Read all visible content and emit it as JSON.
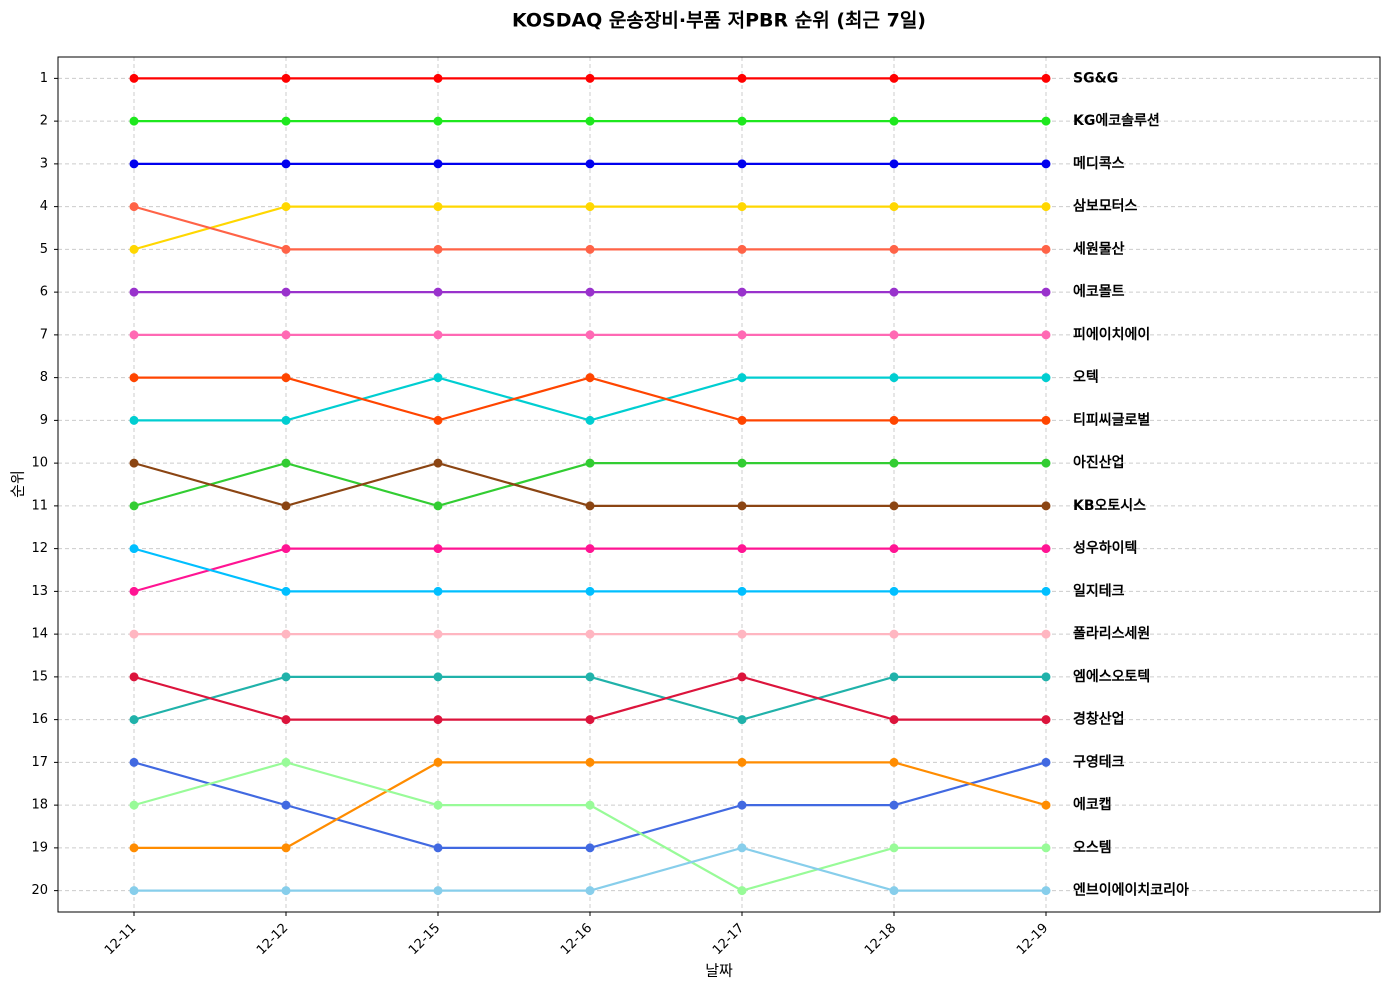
{
  "chart_data": {
    "type": "line",
    "title": "KOSDAQ 운송장비·부품 저PBR 순위 (최근 7일)",
    "x_label": "날짜",
    "y_label": "순위",
    "categories": [
      "12-11",
      "12-12",
      "12-15",
      "12-16",
      "12-17",
      "12-18",
      "12-19"
    ],
    "ylim": [
      20.5,
      0.5
    ],
    "inverted_y": true,
    "yticks": [
      1,
      2,
      3,
      4,
      5,
      6,
      7,
      8,
      9,
      10,
      11,
      12,
      13,
      14,
      15,
      16,
      17,
      18,
      19,
      20
    ],
    "grid": true,
    "series": [
      {
        "name": "SG&G",
        "color": "#ff0000",
        "values": [
          1,
          1,
          1,
          1,
          1,
          1,
          1
        ]
      },
      {
        "name": "KG에코솔루션",
        "color": "#1ee81e",
        "values": [
          2,
          2,
          2,
          2,
          2,
          2,
          2
        ]
      },
      {
        "name": "메디콕스",
        "color": "#0000ee",
        "values": [
          3,
          3,
          3,
          3,
          3,
          3,
          3
        ]
      },
      {
        "name": "삼보모터스",
        "color": "#ffd700",
        "values": [
          5,
          4,
          4,
          4,
          4,
          4,
          4
        ]
      },
      {
        "name": "세원물산",
        "color": "#ff6347",
        "values": [
          4,
          5,
          5,
          5,
          5,
          5,
          5
        ]
      },
      {
        "name": "에코몰트",
        "color": "#9932cc",
        "values": [
          6,
          6,
          6,
          6,
          6,
          6,
          6
        ]
      },
      {
        "name": "피에이치에이",
        "color": "#ff69b4",
        "values": [
          7,
          7,
          7,
          7,
          7,
          7,
          7
        ]
      },
      {
        "name": "오텍",
        "color": "#00ced1",
        "values": [
          9,
          9,
          8,
          9,
          8,
          8,
          8
        ]
      },
      {
        "name": "티피씨글로벌",
        "color": "#ff4500",
        "values": [
          8,
          8,
          9,
          8,
          9,
          9,
          9
        ]
      },
      {
        "name": "아진산업",
        "color": "#32cd32",
        "values": [
          11,
          10,
          11,
          10,
          10,
          10,
          10
        ]
      },
      {
        "name": "KB오토시스",
        "color": "#8b4513",
        "values": [
          10,
          11,
          10,
          11,
          11,
          11,
          11
        ]
      },
      {
        "name": "성우하이텍",
        "color": "#ff1493",
        "values": [
          13,
          12,
          12,
          12,
          12,
          12,
          12
        ]
      },
      {
        "name": "일지테크",
        "color": "#00bfff",
        "values": [
          12,
          13,
          13,
          13,
          13,
          13,
          13
        ]
      },
      {
        "name": "폴라리스세원",
        "color": "#ffb6c1",
        "values": [
          14,
          14,
          14,
          14,
          14,
          14,
          14
        ]
      },
      {
        "name": "엠에스오토텍",
        "color": "#20b2aa",
        "values": [
          16,
          15,
          15,
          15,
          16,
          15,
          15
        ]
      },
      {
        "name": "경창산업",
        "color": "#dc143c",
        "values": [
          15,
          16,
          16,
          16,
          15,
          16,
          16
        ]
      },
      {
        "name": "구영테크",
        "color": "#4169e1",
        "values": [
          17,
          18,
          19,
          19,
          18,
          18,
          17
        ]
      },
      {
        "name": "에코캡",
        "color": "#ff8c00",
        "values": [
          19,
          19,
          17,
          17,
          17,
          17,
          18
        ]
      },
      {
        "name": "오스템",
        "color": "#98fb98",
        "values": [
          18,
          17,
          18,
          18,
          20,
          19,
          19
        ]
      },
      {
        "name": "엔브이에이치코리아",
        "color": "#87ceeb",
        "values": [
          20,
          20,
          20,
          20,
          19,
          20,
          20
        ]
      }
    ]
  }
}
